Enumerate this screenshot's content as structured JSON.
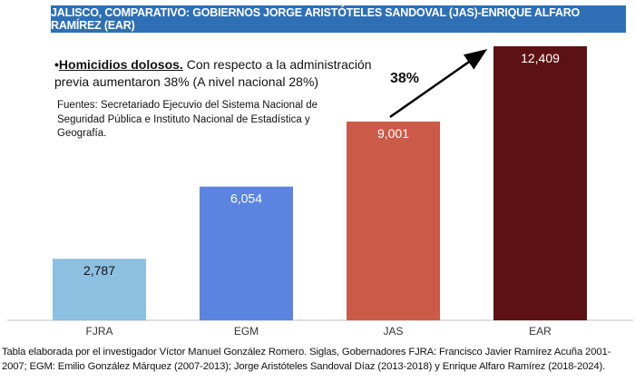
{
  "title": "JALISCO, COMPARATIVO: GOBIERNOS JORGE ARISTÓTELES SANDOVAL (JAS)-ENRIQUE ALFARO RAMÍREZ (EAR)",
  "note": {
    "bullet": "•",
    "heading": "Homicidios dolosos.",
    "text": " Con respecto a la administración previa aumentaron 38% (A nivel nacional 28%)"
  },
  "sources": "Fuentes: Secretariado Ejecuvio del Sistema Nacional de  Seguridad Pública e Instituto Nacional de Estadística y Geografía.",
  "annotation": "38%",
  "footer": "Tabla elaborada por el investigador Víctor Manuel González Romero. Siglas, Gobernadores FJRA: Francisco Javier Ramírez Acuña 2001-2007; EGM: Emilio González Márquez (2007-2013); Jorge Aristóteles Sandoval Díaz (2013-2018) y Enrique Alfaro Ramírez (2018-2024).",
  "chart_data": {
    "type": "bar",
    "title": "JALISCO, COMPARATIVO: GOBIERNOS JORGE ARISTÓTELES SANDOVAL (JAS)-ENRIQUE ALFARO RAMÍREZ (EAR)",
    "categories": [
      "FJRA",
      "EGM",
      "JAS",
      "EAR"
    ],
    "values": [
      2787,
      6054,
      9001,
      12409
    ],
    "value_labels": [
      "2,787",
      "6,054",
      "9,001",
      "12,409"
    ],
    "colors": [
      "#8dbfe0",
      "#5a84e0",
      "#cc5a48",
      "#5c1212"
    ],
    "ylim": [
      0,
      12409
    ],
    "xlabel": "",
    "ylabel": "",
    "grid": false
  }
}
